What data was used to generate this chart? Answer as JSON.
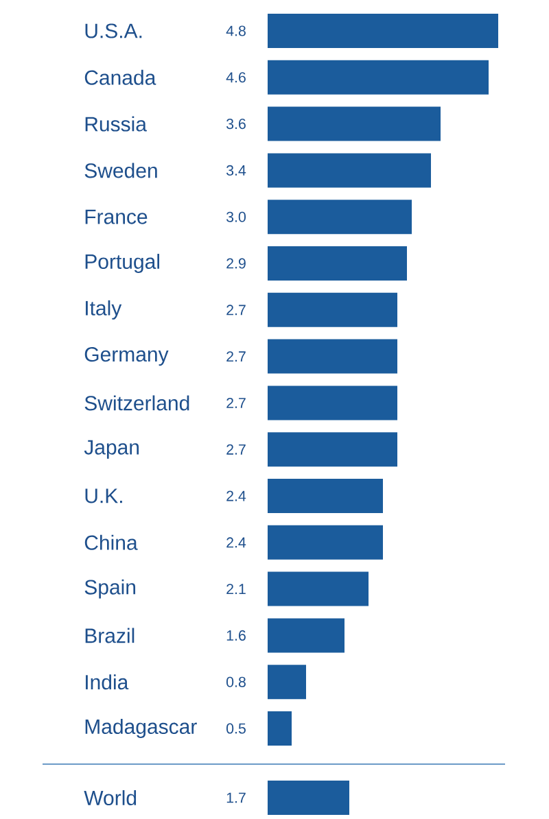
{
  "chart_data": [
    {
      "type": "bar",
      "orientation": "horizontal",
      "categories": [
        "U.S.A.",
        "Canada",
        "Russia",
        "Sweden",
        "France",
        "Portugal",
        "Italy",
        "Germany",
        "Switzerland",
        "Japan",
        "U.K.",
        "China",
        "Spain",
        "Brazil",
        "India",
        "Madagascar"
      ],
      "values": [
        4.8,
        4.6,
        3.6,
        3.4,
        3.0,
        2.9,
        2.7,
        2.7,
        2.7,
        2.7,
        2.4,
        2.4,
        2.1,
        1.6,
        0.8,
        0.5
      ],
      "value_labels": [
        "4.8",
        "4.6",
        "3.6",
        "3.4",
        "3.0",
        "2.9",
        "2.7",
        "2.7",
        "2.7",
        "2.7",
        "2.4",
        "2.4",
        "2.1",
        "1.6",
        "0.8",
        "0.5"
      ],
      "color": "#1b5c9c",
      "tick_labels": "y"
    },
    {
      "type": "bar",
      "orientation": "horizontal",
      "categories": [
        "World"
      ],
      "values": [
        1.7
      ],
      "value_labels": [
        "1.7"
      ],
      "color": "#1b5c9c",
      "tick_labels": "y"
    }
  ]
}
